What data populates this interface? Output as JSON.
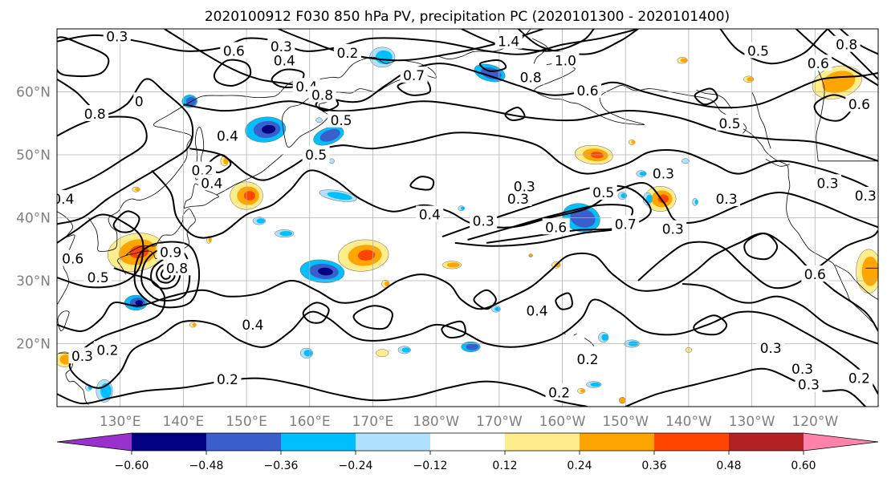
{
  "chart_data": {
    "type": "contour-map",
    "title": "2020100912 F030 850 hPa PV, precipitation PC (2020101300 - 2020101400)",
    "map": {
      "projection": "PlateCarree",
      "lon_range": [
        120,
        250
      ],
      "lat_range": [
        10,
        70
      ],
      "grid": true,
      "coastlines": true
    },
    "lon_ticks": [
      {
        "value": 130,
        "label": "130°E"
      },
      {
        "value": 140,
        "label": "140°E"
      },
      {
        "value": 150,
        "label": "150°E"
      },
      {
        "value": 160,
        "label": "160°E"
      },
      {
        "value": 170,
        "label": "170°E"
      },
      {
        "value": 180,
        "label": "180°W"
      },
      {
        "value": 190,
        "label": "170°W"
      },
      {
        "value": 200,
        "label": "160°W"
      },
      {
        "value": 210,
        "label": "150°W"
      },
      {
        "value": 220,
        "label": "140°W"
      },
      {
        "value": 230,
        "label": "130°W"
      },
      {
        "value": 240,
        "label": "120°W"
      }
    ],
    "lat_ticks": [
      {
        "value": 20,
        "label": "20°N"
      },
      {
        "value": 30,
        "label": "30°N"
      },
      {
        "value": 40,
        "label": "40°N"
      },
      {
        "value": 50,
        "label": "50°N"
      },
      {
        "value": 60,
        "label": "60°N"
      }
    ],
    "pv_contour_labels": [
      {
        "lon": 129.5,
        "lat": 68.8,
        "text": "0.3"
      },
      {
        "lon": 148,
        "lat": 66.5,
        "text": "0.6"
      },
      {
        "lon": 155.5,
        "lat": 67.2,
        "text": "0.3"
      },
      {
        "lon": 156,
        "lat": 65.0,
        "text": "0.4"
      },
      {
        "lon": 166,
        "lat": 66.2,
        "text": "0.2"
      },
      {
        "lon": 191.5,
        "lat": 68.0,
        "text": "1.4"
      },
      {
        "lon": 200.5,
        "lat": 65.0,
        "text": "1.0"
      },
      {
        "lon": 195,
        "lat": 62.3,
        "text": "0.8"
      },
      {
        "lon": 176.5,
        "lat": 62.6,
        "text": "0.7"
      },
      {
        "lon": 159.5,
        "lat": 60.8,
        "text": "0.4"
      },
      {
        "lon": 162,
        "lat": 59.5,
        "text": "0.8"
      },
      {
        "lon": 204,
        "lat": 60.2,
        "text": "0.6"
      },
      {
        "lon": 231,
        "lat": 66.5,
        "text": "0.5"
      },
      {
        "lon": 240.5,
        "lat": 64.5,
        "text": "0.6"
      },
      {
        "lon": 245,
        "lat": 67.5,
        "text": "0.8"
      },
      {
        "lon": 126,
        "lat": 56.5,
        "text": "0.8"
      },
      {
        "lon": 133,
        "lat": 58.5,
        "text": "0"
      },
      {
        "lon": 165,
        "lat": 55.5,
        "text": "0.5"
      },
      {
        "lon": 147,
        "lat": 53.0,
        "text": "0.4"
      },
      {
        "lon": 161,
        "lat": 50.0,
        "text": "0.5"
      },
      {
        "lon": 226.5,
        "lat": 55.0,
        "text": "0.5"
      },
      {
        "lon": 247,
        "lat": 58.0,
        "text": "0.6"
      },
      {
        "lon": 143,
        "lat": 47.5,
        "text": "0.2"
      },
      {
        "lon": 144.5,
        "lat": 45.5,
        "text": "0.4"
      },
      {
        "lon": 187.5,
        "lat": 39.5,
        "text": "0.3"
      },
      {
        "lon": 193,
        "lat": 43.0,
        "text": "0.3"
      },
      {
        "lon": 194,
        "lat": 45.0,
        "text": "0.3"
      },
      {
        "lon": 206.5,
        "lat": 44.0,
        "text": "0.5"
      },
      {
        "lon": 216,
        "lat": 47.0,
        "text": "0.3"
      },
      {
        "lon": 226,
        "lat": 43.0,
        "text": "0.3"
      },
      {
        "lon": 242,
        "lat": 45.5,
        "text": "0.3"
      },
      {
        "lon": 248,
        "lat": 43.5,
        "text": "0.3"
      },
      {
        "lon": 179,
        "lat": 40.5,
        "text": "0.4"
      },
      {
        "lon": 199,
        "lat": 38.5,
        "text": "0.6"
      },
      {
        "lon": 210,
        "lat": 39.0,
        "text": "0.7"
      },
      {
        "lon": 217.5,
        "lat": 38.2,
        "text": "0.3"
      },
      {
        "lon": 121,
        "lat": 43.0,
        "text": "0.4"
      },
      {
        "lon": 122.5,
        "lat": 33.5,
        "text": "0.6"
      },
      {
        "lon": 126.5,
        "lat": 30.5,
        "text": "0.5"
      },
      {
        "lon": 139,
        "lat": 32.0,
        "text": "0.8"
      },
      {
        "lon": 138,
        "lat": 34.5,
        "text": "0.9"
      },
      {
        "lon": 240,
        "lat": 31.0,
        "text": "0.6"
      },
      {
        "lon": 196,
        "lat": 25.2,
        "text": "0.4"
      },
      {
        "lon": 151,
        "lat": 23.0,
        "text": "0.4"
      },
      {
        "lon": 124,
        "lat": 18.0,
        "text": "0.3"
      },
      {
        "lon": 128,
        "lat": 19.0,
        "text": "0.2"
      },
      {
        "lon": 147,
        "lat": 14.3,
        "text": "0.2"
      },
      {
        "lon": 204,
        "lat": 17.5,
        "text": "0.2"
      },
      {
        "lon": 233,
        "lat": 19.3,
        "text": "0.3"
      },
      {
        "lon": 238,
        "lat": 16.0,
        "text": "0.3"
      },
      {
        "lon": 239,
        "lat": 13.5,
        "text": "0.3"
      },
      {
        "lon": 247,
        "lat": 14.5,
        "text": "0.2"
      },
      {
        "lon": 199.5,
        "lat": 12.2,
        "text": "0.2"
      }
    ],
    "colorbar": {
      "levels": [
        -0.72,
        -0.6,
        -0.48,
        -0.36,
        -0.24,
        -0.12,
        0.12,
        0.24,
        0.36,
        0.48,
        0.6,
        0.72
      ],
      "tick_labels": [
        "−0.60",
        "−0.48",
        "−0.36",
        "−0.24",
        "−0.12",
        "0.12",
        "0.24",
        "0.36",
        "0.48",
        "0.60"
      ],
      "colors": [
        "#9932cc",
        "#000080",
        "#3a5fcd",
        "#00bfff",
        "#b0e2ff",
        "#ffffff",
        "#ffec8b",
        "#ffa500",
        "#ff4500",
        "#b22222",
        "#ff82ab"
      ],
      "extend": "both"
    }
  }
}
